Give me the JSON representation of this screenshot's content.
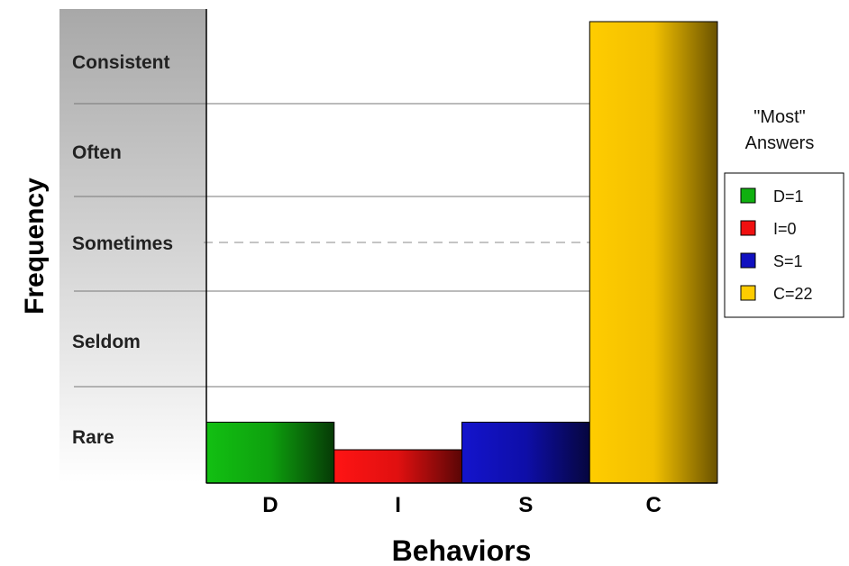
{
  "chart_data": {
    "type": "bar",
    "xlabel": "Behaviors",
    "ylabel": "Frequency",
    "categories": [
      "D",
      "I",
      "S",
      "C"
    ],
    "values": [
      1,
      0,
      1,
      22
    ],
    "colors": [
      "#10b010",
      "#f01010",
      "#1010c0",
      "#ffcc00"
    ],
    "frequency_levels": [
      "Consistent",
      "Often",
      "Sometimes",
      "Seldom",
      "Rare"
    ],
    "legend": {
      "title_line1": "\"Most\"",
      "title_line2": "Answers",
      "entries": [
        "D=1",
        "I=0",
        "S=1",
        "C=22"
      ],
      "placement": "right"
    },
    "grid": true
  }
}
